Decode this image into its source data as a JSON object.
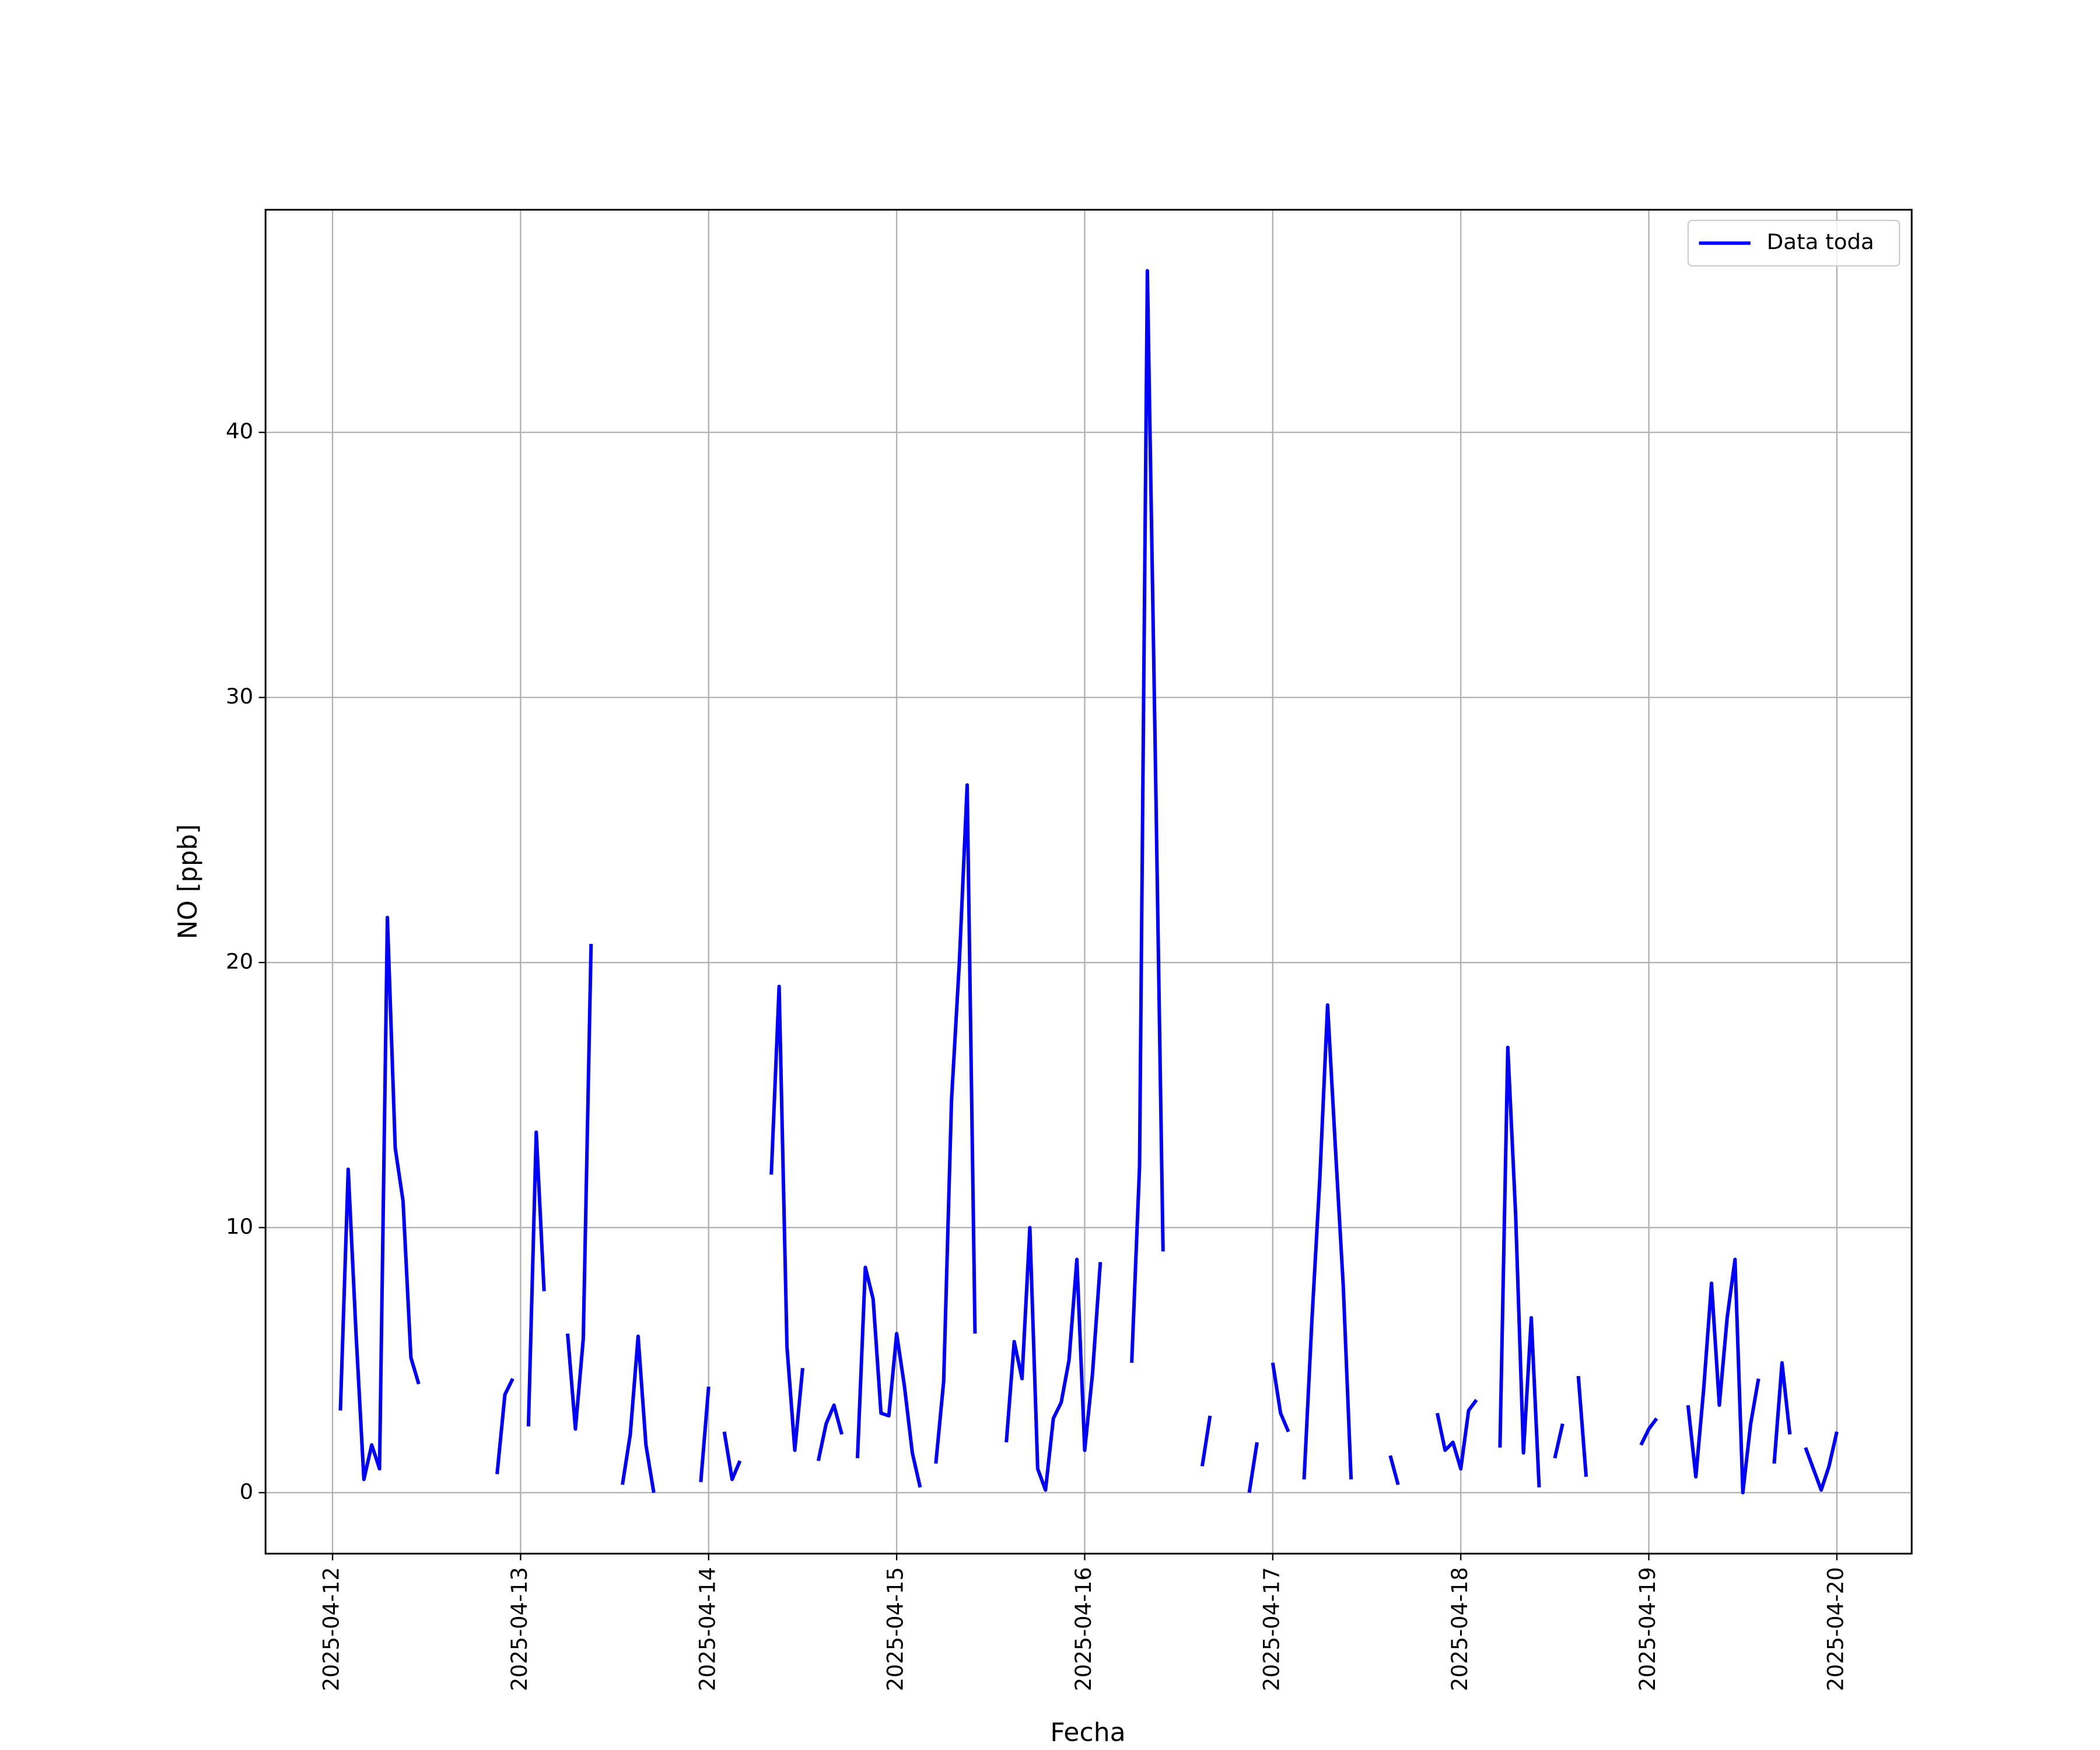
{
  "chart_data": {
    "type": "line",
    "xlabel": "Fecha",
    "ylabel": "NO [ppb]",
    "x": [
      "2025-04-12T01:00",
      "2025-04-12T02:00",
      "2025-04-12T03:00",
      "2025-04-12T04:00",
      "2025-04-12T05:00",
      "2025-04-12T06:00",
      "2025-04-12T07:00",
      "2025-04-12T08:00",
      "2025-04-12T09:00",
      "2025-04-12T10:00",
      "2025-04-12T11:00",
      "2025-04-12T12:00",
      "2025-04-12T21:00",
      "2025-04-12T22:00",
      "2025-04-12T23:00",
      "2025-04-13T00:00",
      "2025-04-13T01:00",
      "2025-04-13T02:00",
      "2025-04-13T03:00",
      "2025-04-13T04:00",
      "2025-04-13T06:00",
      "2025-04-13T07:00",
      "2025-04-13T08:00",
      "2025-04-13T09:00",
      "2025-04-13T10:00",
      "2025-04-13T13:00",
      "2025-04-13T14:00",
      "2025-04-13T15:00",
      "2025-04-13T16:00",
      "2025-04-13T17:00",
      "2025-04-13T18:00",
      "2025-04-13T23:00",
      "2025-04-14T00:00",
      "2025-04-14T01:00",
      "2025-04-14T02:00",
      "2025-04-14T03:00",
      "2025-04-14T04:00",
      "2025-04-14T05:00",
      "2025-04-14T08:00",
      "2025-04-14T09:00",
      "2025-04-14T10:00",
      "2025-04-14T11:00",
      "2025-04-14T12:00",
      "2025-04-14T13:00",
      "2025-04-14T14:00",
      "2025-04-14T15:00",
      "2025-04-14T16:00",
      "2025-04-14T17:00",
      "2025-04-14T18:00",
      "2025-04-14T19:00",
      "2025-04-14T20:00",
      "2025-04-14T21:00",
      "2025-04-14T22:00",
      "2025-04-14T23:00",
      "2025-04-15T00:00",
      "2025-04-15T01:00",
      "2025-04-15T02:00",
      "2025-04-15T03:00",
      "2025-04-15T04:00",
      "2025-04-15T05:00",
      "2025-04-15T06:00",
      "2025-04-15T07:00",
      "2025-04-15T08:00",
      "2025-04-15T09:00",
      "2025-04-15T10:00",
      "2025-04-15T11:00",
      "2025-04-15T14:00",
      "2025-04-15T15:00",
      "2025-04-15T16:00",
      "2025-04-15T17:00",
      "2025-04-15T18:00",
      "2025-04-15T19:00",
      "2025-04-15T20:00",
      "2025-04-15T21:00",
      "2025-04-15T22:00",
      "2025-04-15T23:00",
      "2025-04-16T00:00",
      "2025-04-16T01:00",
      "2025-04-16T02:00",
      "2025-04-16T03:00",
      "2025-04-16T06:00",
      "2025-04-16T07:00",
      "2025-04-16T08:00",
      "2025-04-16T09:00",
      "2025-04-16T10:00",
      "2025-04-16T11:00",
      "2025-04-16T15:00",
      "2025-04-16T16:00",
      "2025-04-16T17:00",
      "2025-04-16T21:00",
      "2025-04-16T22:00",
      "2025-04-16T23:00",
      "2025-04-17T00:00",
      "2025-04-17T01:00",
      "2025-04-17T02:00",
      "2025-04-17T03:00",
      "2025-04-17T04:00",
      "2025-04-17T05:00",
      "2025-04-17T06:00",
      "2025-04-17T07:00",
      "2025-04-17T08:00",
      "2025-04-17T09:00",
      "2025-04-17T10:00",
      "2025-04-17T11:00",
      "2025-04-17T15:00",
      "2025-04-17T16:00",
      "2025-04-17T17:00",
      "2025-04-17T21:00",
      "2025-04-17T22:00",
      "2025-04-17T23:00",
      "2025-04-18T00:00",
      "2025-04-18T01:00",
      "2025-04-18T02:00",
      "2025-04-18T03:00",
      "2025-04-18T05:00",
      "2025-04-18T06:00",
      "2025-04-18T07:00",
      "2025-04-18T08:00",
      "2025-04-18T09:00",
      "2025-04-18T10:00",
      "2025-04-18T11:00",
      "2025-04-18T12:00",
      "2025-04-18T13:00",
      "2025-04-18T14:00",
      "2025-04-18T15:00",
      "2025-04-18T16:00",
      "2025-04-18T17:00",
      "2025-04-18T23:00",
      "2025-04-19T00:00",
      "2025-04-19T01:00",
      "2025-04-19T02:00",
      "2025-04-19T05:00",
      "2025-04-19T06:00",
      "2025-04-19T07:00",
      "2025-04-19T08:00",
      "2025-04-19T09:00",
      "2025-04-19T10:00",
      "2025-04-19T11:00",
      "2025-04-19T12:00",
      "2025-04-19T13:00",
      "2025-04-19T14:00",
      "2025-04-19T15:00",
      "2025-04-19T16:00",
      "2025-04-19T17:00",
      "2025-04-19T18:00",
      "2025-04-19T19:00",
      "2025-04-19T20:00",
      "2025-04-19T21:00",
      "2025-04-19T22:00",
      "2025-04-19T23:00",
      "2025-04-20T00:00"
    ],
    "series": [
      {
        "name": "Data toda",
        "color": "#0000ff",
        "values": [
          3.1,
          12.2,
          6,
          0.5,
          1.8,
          0.9,
          21.7,
          13,
          11,
          5.1,
          4.1,
          null,
          0.7,
          3.7,
          4.3,
          null,
          2.5,
          13.6,
          7.6,
          null,
          6,
          2.4,
          5.8,
          20.7,
          null,
          0.3,
          2.2,
          5.9,
          1.8,
          0,
          null,
          0.4,
          4,
          null,
          2.3,
          0.5,
          1.2,
          null,
          12,
          19.1,
          5.5,
          1.6,
          4.7,
          null,
          1.2,
          2.6,
          3.3,
          2.2,
          null,
          1.3,
          8.5,
          7.3,
          3,
          2.9,
          6,
          4,
          1.5,
          0.2,
          null,
          1.1,
          4.2,
          14.8,
          20,
          26.7,
          6,
          null,
          1.9,
          5.7,
          4.3,
          10,
          0.9,
          0.1,
          2.8,
          3.4,
          5,
          8.8,
          1.6,
          4.5,
          8.7,
          null,
          4.9,
          12.3,
          46.1,
          28,
          9.1,
          null,
          1,
          2.9,
          null,
          0,
          1.9,
          null,
          4.9,
          3,
          2.3,
          null,
          0.5,
          6.5,
          11.8,
          18.4,
          13,
          7.8,
          0.5,
          null,
          1.4,
          0.3,
          null,
          3,
          1.6,
          1.9,
          0.9,
          3.1,
          3.5,
          null,
          1.7,
          16.8,
          10.5,
          1.5,
          6.6,
          0.2,
          null,
          1.3,
          2.6,
          null,
          4.4,
          0.6,
          null,
          1.8,
          2.4,
          2.8,
          null,
          3.3,
          0.6,
          3.9,
          7.9,
          3.3,
          6.6,
          8.8,
          0,
          2.6,
          4.3,
          null,
          1.1,
          4.9,
          2.2,
          null,
          1.7,
          0.9,
          0.1,
          1,
          2.3
        ]
      }
    ],
    "xlim": [
      "2025-04-11T15:27",
      "2025-04-20T09:33"
    ],
    "xticks": [
      "2025-04-12",
      "2025-04-13",
      "2025-04-14",
      "2025-04-15",
      "2025-04-16",
      "2025-04-17",
      "2025-04-18",
      "2025-04-19",
      "2025-04-20"
    ],
    "ylim": [
      -2.3,
      48.4
    ],
    "yticks": [
      0,
      10,
      20,
      30,
      40
    ],
    "grid": true,
    "legend": "upper right"
  }
}
